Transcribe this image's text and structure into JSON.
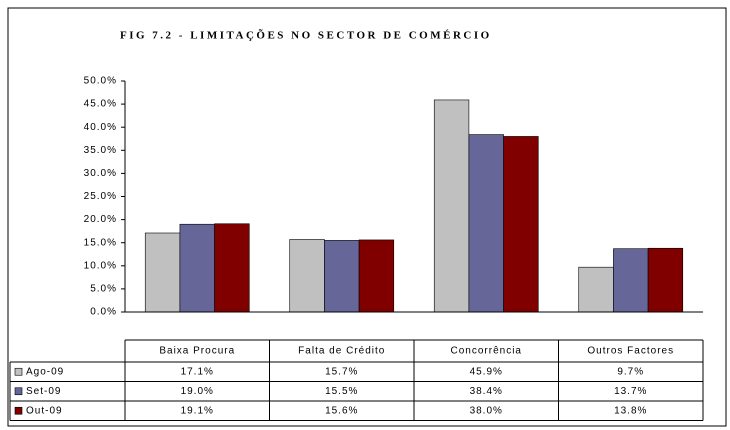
{
  "chart_data": {
    "type": "bar",
    "title": "FIG 7.2 - LIMITAÇÕES NO SECTOR DE COMÉRCIO",
    "categories": [
      "Baixa Procura",
      "Falta de Crédito",
      "Concorrência",
      "Outros Factores"
    ],
    "series": [
      {
        "name": "Ago-09",
        "color": "#c0c0c0",
        "values": [
          17.1,
          15.7,
          45.9,
          9.7
        ],
        "value_labels": [
          "17.1%",
          "15.7%",
          "45.9%",
          "9.7%"
        ]
      },
      {
        "name": "Set-09",
        "color": "#666699",
        "values": [
          19.0,
          15.5,
          38.4,
          13.7
        ],
        "value_labels": [
          "19.0%",
          "15.5%",
          "38.4%",
          "13.7%"
        ]
      },
      {
        "name": "Out-09",
        "color": "#800000",
        "values": [
          19.1,
          15.6,
          38.0,
          13.8
        ],
        "value_labels": [
          "19.1%",
          "15.6%",
          "38.0%",
          "13.8%"
        ]
      }
    ],
    "ylim": [
      0,
      50
    ],
    "yticks": [
      {
        "value": 0,
        "label": "0.0%"
      },
      {
        "value": 5,
        "label": "5.0%"
      },
      {
        "value": 10,
        "label": "10.0%"
      },
      {
        "value": 15,
        "label": "15.0%"
      },
      {
        "value": 20,
        "label": "20.0%"
      },
      {
        "value": 25,
        "label": "25.0%"
      },
      {
        "value": 30,
        "label": "30.0%"
      },
      {
        "value": 35,
        "label": "35.0%"
      },
      {
        "value": 40,
        "label": "40.0%"
      },
      {
        "value": 45,
        "label": "45.0%"
      },
      {
        "value": 50,
        "label": "50.0%"
      }
    ],
    "grid": false
  }
}
